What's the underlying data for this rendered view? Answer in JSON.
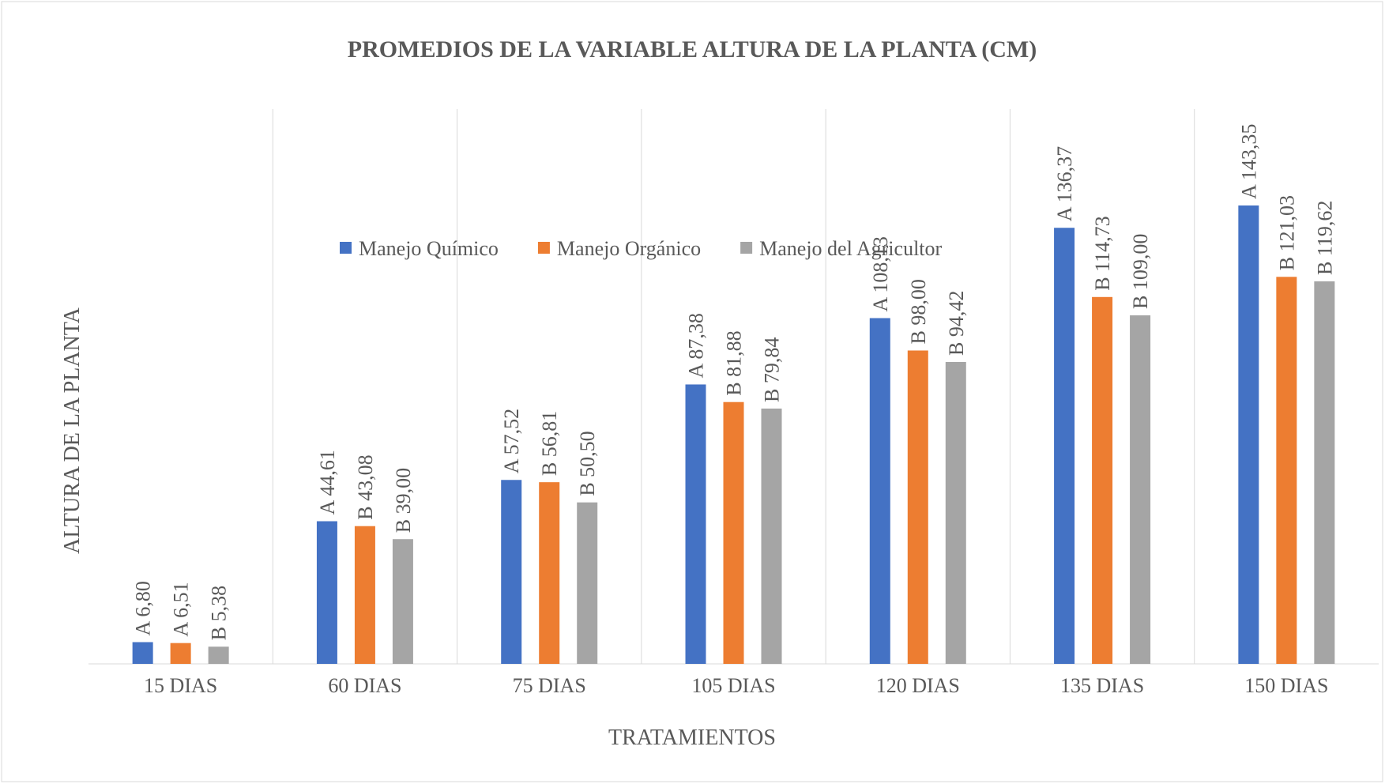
{
  "chart_data": {
    "type": "bar",
    "title": "PROMEDIOS DE LA VARIABLE ALTURA DE LA PLANTA (CM)",
    "y_label": "ALTURA DE LA PLANTA",
    "x_label": "TRATAMIENTOS",
    "categories": [
      "15 DIAS",
      "60 DIAS",
      "75 DIAS",
      "105 DIAS",
      "120 DIAS",
      "135 DIAS",
      "150 DIAS"
    ],
    "series": [
      {
        "name": "Manejo Químico",
        "color": "#4472c4",
        "values": [
          6.8,
          44.61,
          57.52,
          87.38,
          108.13,
          136.37,
          143.35
        ],
        "value_labels": [
          "A 6,80",
          "A 44,61",
          "A 57,52",
          "A 87,38",
          "A 108,13",
          "A 136,37",
          "A 143,35"
        ]
      },
      {
        "name": "Manejo Orgánico",
        "color": "#ed7d31",
        "values": [
          6.51,
          43.08,
          56.81,
          81.88,
          98.0,
          114.73,
          121.03
        ],
        "value_labels": [
          "A 6,51",
          "B 43,08",
          "B 56,81",
          "B 81,88",
          "B 98,00",
          "B 114,73",
          "B 121,03"
        ]
      },
      {
        "name": "Manejo del Agricultor",
        "color": "#a5a5a5",
        "values": [
          5.38,
          39.0,
          50.5,
          79.84,
          94.42,
          109.0,
          119.62
        ],
        "value_labels": [
          "B 5,38",
          "B 39,00",
          "B 50,50",
          "B 79,84",
          "B 94,42",
          "B 109,00",
          "B 119,62"
        ]
      }
    ],
    "grid": true,
    "legend": "top"
  }
}
